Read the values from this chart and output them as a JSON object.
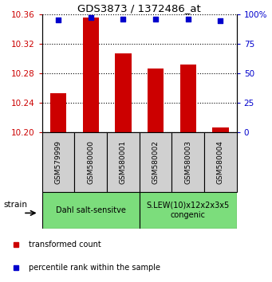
{
  "title": "GDS3873 / 1372486_at",
  "samples": [
    "GSM579999",
    "GSM580000",
    "GSM580001",
    "GSM580002",
    "GSM580003",
    "GSM580004"
  ],
  "bar_values": [
    10.253,
    10.355,
    10.307,
    10.287,
    10.292,
    10.207
  ],
  "percentile_values": [
    95,
    97,
    95.5,
    95.5,
    95.5,
    94.5
  ],
  "ylim_left": [
    10.2,
    10.36
  ],
  "ylim_right": [
    0,
    100
  ],
  "yticks_left": [
    10.2,
    10.24,
    10.28,
    10.32,
    10.36
  ],
  "yticks_right": [
    0,
    25,
    50,
    75,
    100
  ],
  "bar_color": "#cc0000",
  "dot_color": "#0000cc",
  "group1_label": "Dahl salt-sensitve",
  "group2_label": "S.LEW(10)x12x2x3x5\ncongenic",
  "group1_color": "#7cdd7c",
  "group2_color": "#7cdd7c",
  "xlabel_strain": "strain",
  "legend_bar": "transformed count",
  "legend_dot": "percentile rank within the sample",
  "bar_bottom": 10.2,
  "bg_color": "#f0f0f0",
  "tick_box_color": "#d0d0d0"
}
